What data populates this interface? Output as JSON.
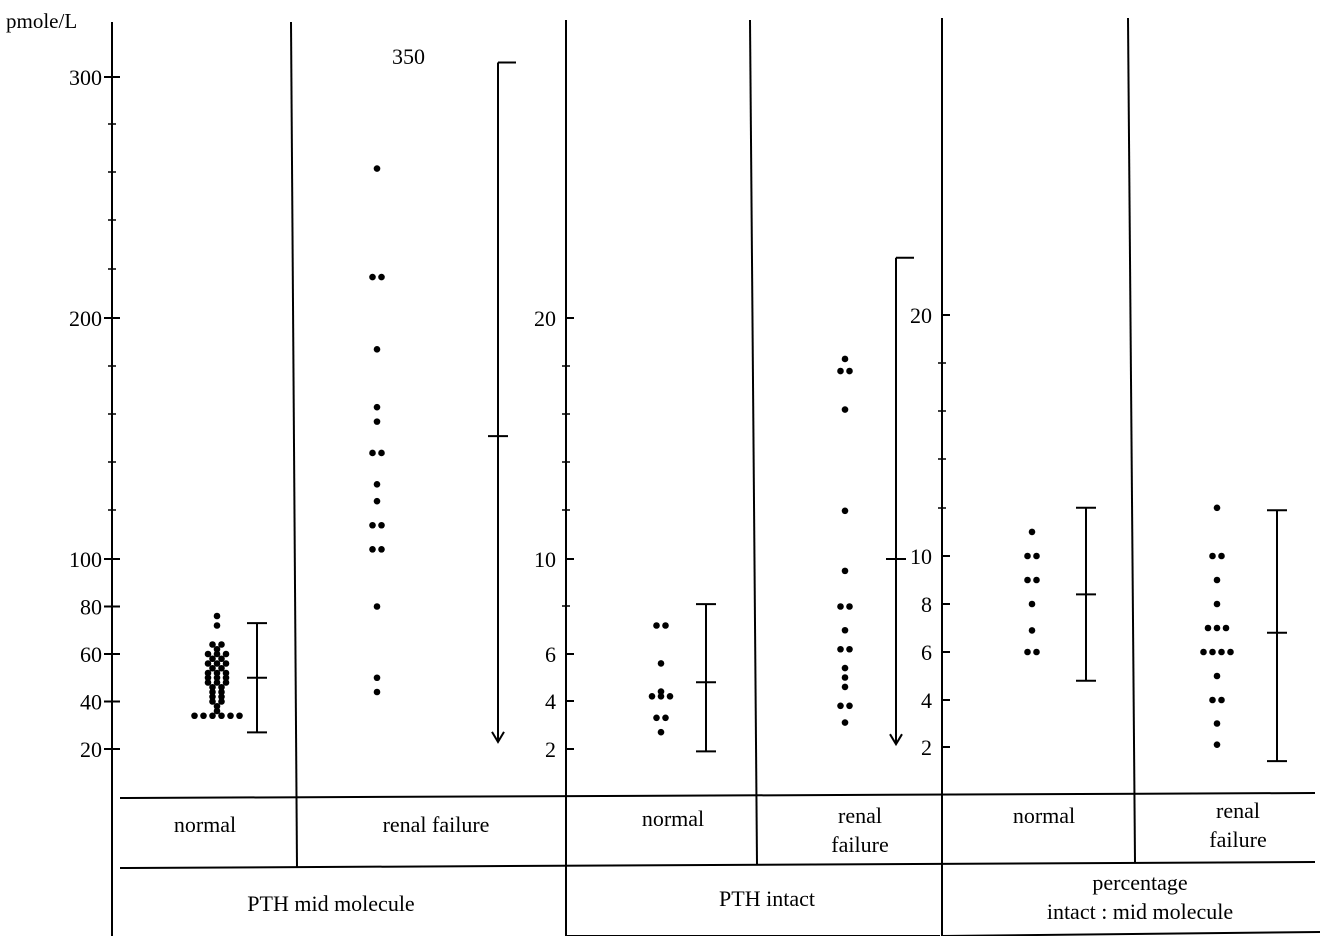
{
  "chart_data": [
    {
      "type": "scatter",
      "panel": "PTH mid molecule",
      "ylabel": "pmole/L",
      "yticks": [
        20,
        40,
        60,
        80,
        100,
        200,
        300
      ],
      "ytick_labels": [
        "20",
        "40",
        "60",
        "80",
        "100",
        "200",
        "300"
      ],
      "groups": [
        {
          "label": "normal",
          "values": [
            76,
            72,
            64,
            64,
            62,
            60,
            60,
            60,
            58,
            58,
            56,
            56,
            56,
            54,
            54,
            52,
            52,
            52,
            50,
            50,
            50,
            48,
            48,
            48,
            46,
            46,
            44,
            44,
            42,
            42,
            40,
            40,
            38,
            36,
            34,
            34,
            34,
            34,
            34,
            34
          ],
          "range": {
            "mean": 50,
            "low": 27,
            "high": 73
          }
        },
        {
          "label": "renal failure",
          "values": [
            350,
            262,
            217,
            217,
            187,
            163,
            157,
            144,
            144,
            131,
            124,
            114,
            114,
            104,
            104,
            80,
            50,
            44
          ],
          "outlier_label": "350",
          "range": {
            "mean": 151,
            "low": 23,
            "high": 306
          }
        }
      ]
    },
    {
      "type": "scatter",
      "panel": "PTH intact",
      "yticks": [
        2,
        4,
        6,
        10,
        20
      ],
      "ytick_labels": [
        "2",
        "4",
        "6",
        "10",
        "20"
      ],
      "groups": [
        {
          "label": "normal",
          "values": [
            7.2,
            7.2,
            5.6,
            4.4,
            4.2,
            4.2,
            4.2,
            3.3,
            3.3,
            2.7
          ],
          "range": {
            "mean": 4.8,
            "low": 1.9,
            "high": 8.1
          }
        },
        {
          "label": "renal failure",
          "values": [
            18.3,
            17.8,
            17.8,
            16.2,
            12.0,
            9.5,
            8.0,
            8.0,
            7.0,
            6.2,
            6.2,
            5.4,
            5.0,
            4.6,
            3.8,
            3.8,
            3.1
          ],
          "range": {
            "mean": 10.0,
            "low": 2.2,
            "high": 22.5
          }
        }
      ]
    },
    {
      "type": "scatter",
      "panel": "percentage intact : mid molecule",
      "yticks": [
        2,
        4,
        6,
        8,
        10,
        20
      ],
      "ytick_labels": [
        "2",
        "4",
        "6",
        "8",
        "10",
        "20"
      ],
      "groups": [
        {
          "label": "normal",
          "values": [
            11.0,
            10.0,
            10.0,
            9.0,
            9.0,
            8.0,
            6.9,
            6.0,
            6.0
          ],
          "range": {
            "mean": 8.4,
            "low": 4.8,
            "high": 12.0
          }
        },
        {
          "label": "renal failure",
          "values": [
            12.0,
            10.0,
            10.0,
            9.0,
            8.0,
            7.0,
            7.0,
            7.0,
            6.0,
            6.0,
            6.0,
            6.0,
            5.0,
            4.0,
            4.0,
            3.0,
            2.1
          ],
          "range": {
            "mean": 6.8,
            "low": 1.4,
            "high": 11.9
          }
        }
      ]
    }
  ],
  "table": {
    "groups_row": [
      "normal",
      "renal failure",
      "normal",
      "renal\nfailure",
      "normal",
      "renal\nfailure"
    ],
    "panels_row": [
      "PTH mid molecule",
      "PTH intact",
      "percentage\nintact : mid molecule"
    ]
  }
}
